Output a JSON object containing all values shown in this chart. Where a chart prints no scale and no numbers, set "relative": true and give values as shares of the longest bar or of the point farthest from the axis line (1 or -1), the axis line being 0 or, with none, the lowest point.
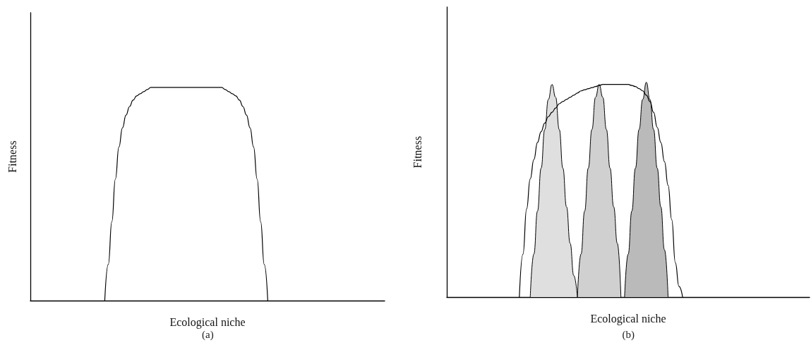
{
  "chart_data": [
    {
      "type": "line",
      "relative": true,
      "xlabel": "Ecological niche",
      "ylabel": "Fitness",
      "annotations": [
        "(a)"
      ],
      "tick_labels": false,
      "categories": [
        null,
        null,
        null,
        null,
        null,
        null,
        null,
        null,
        null,
        null,
        null,
        null,
        null,
        null,
        null,
        null,
        null,
        null,
        null,
        null,
        null,
        null,
        null,
        null,
        null,
        null,
        null,
        null,
        null,
        null,
        null,
        null,
        null,
        null,
        null,
        null,
        null,
        null,
        null,
        null,
        null,
        null,
        null,
        null,
        null,
        null,
        null,
        null,
        null,
        null,
        null,
        null,
        null,
        null,
        null,
        null,
        null,
        null,
        null,
        null,
        null,
        null,
        null,
        null,
        null,
        null,
        null,
        null,
        null,
        null,
        null,
        null,
        null,
        null,
        null,
        null,
        null,
        null,
        null,
        null,
        null,
        null,
        null,
        null,
        null,
        null,
        null,
        null,
        null,
        null,
        null,
        null,
        null,
        null,
        null,
        null,
        null,
        null,
        null,
        null,
        null
      ],
      "series": [
        {
          "color": "#000000",
          "values": [
            null,
            null,
            null,
            null,
            null,
            null,
            null,
            null,
            null,
            null,
            null,
            null,
            null,
            null,
            null,
            null,
            null,
            null,
            null,
            null,
            null,
            0,
            0.17,
            0.37,
            0.57,
            0.72,
            0.81,
            0.87,
            0.91,
            0.94,
            0.96,
            0.97,
            0.98,
            0.99,
            1,
            1,
            1,
            1,
            1,
            1,
            1,
            1,
            1,
            1,
            1,
            1,
            1,
            1,
            1,
            1,
            1,
            1,
            1,
            1,
            1,
            0.99,
            0.98,
            0.97,
            0.96,
            0.94,
            0.91,
            0.87,
            0.81,
            0.72,
            0.57,
            0.37,
            0.17,
            0,
            null,
            null,
            null,
            null,
            null,
            null,
            null,
            null,
            null,
            null,
            null,
            null,
            null,
            null,
            null,
            null,
            null,
            null,
            null,
            null,
            null,
            null,
            null,
            null,
            null,
            null,
            null,
            null,
            null,
            null,
            null,
            null,
            null
          ]
        }
      ]
    },
    {
      "type": "line",
      "relative": true,
      "xlabel": "Ecological niche",
      "ylabel": "Fitness",
      "annotations": [
        "(b)"
      ],
      "tick_labels": false,
      "categories": [
        null,
        null,
        null,
        null,
        null,
        null,
        null,
        null,
        null,
        null,
        null,
        null,
        null,
        null,
        null,
        null,
        null,
        null,
        null,
        null,
        null,
        null,
        null,
        null,
        null,
        null,
        null,
        null,
        null,
        null,
        null,
        null,
        null,
        null,
        null,
        null,
        null,
        null,
        null,
        null,
        null,
        null,
        null,
        null,
        null,
        null,
        null,
        null,
        null,
        null,
        null,
        null,
        null,
        null,
        null,
        null,
        null,
        null,
        null,
        null,
        null,
        null,
        null,
        null,
        null,
        null,
        null,
        null,
        null,
        null,
        null,
        null,
        null,
        null,
        null,
        null,
        null,
        null,
        null,
        null,
        null,
        null,
        null,
        null,
        null,
        null,
        null,
        null,
        null,
        null,
        null,
        null,
        null,
        null,
        null,
        null,
        null,
        null,
        null,
        null,
        null
      ],
      "series": [
        {
          "type": "area",
          "color": "#dfdfdf",
          "values": [
            null,
            null,
            null,
            null,
            null,
            null,
            null,
            null,
            null,
            null,
            null,
            null,
            null,
            null,
            null,
            null,
            null,
            null,
            null,
            null,
            null,
            null,
            null,
            0,
            0.2,
            0.4,
            0.6,
            0.78,
            0.92,
            0.99,
            0.93,
            0.78,
            0.6,
            0.42,
            0.25,
            0.1,
            0,
            null,
            null,
            null,
            null,
            null,
            null,
            null,
            null,
            null,
            null,
            null,
            null,
            null,
            null,
            null,
            null,
            null,
            null,
            null,
            null,
            null,
            null,
            null,
            null,
            null,
            null,
            null,
            null,
            null,
            null,
            null,
            null,
            null,
            null,
            null,
            null,
            null,
            null,
            null,
            null,
            null,
            null,
            null,
            null,
            null,
            null,
            null,
            null,
            null,
            null,
            null,
            null,
            null,
            null,
            null,
            null,
            null,
            null,
            null,
            null,
            null,
            null,
            null,
            null
          ]
        },
        {
          "type": "area",
          "color": "#d0d0d0",
          "values": [
            null,
            null,
            null,
            null,
            null,
            null,
            null,
            null,
            null,
            null,
            null,
            null,
            null,
            null,
            null,
            null,
            null,
            null,
            null,
            null,
            null,
            null,
            null,
            null,
            null,
            null,
            null,
            null,
            null,
            null,
            null,
            null,
            null,
            null,
            null,
            null,
            0,
            0.2,
            0.4,
            0.6,
            0.78,
            0.93,
            0.99,
            0.93,
            0.78,
            0.6,
            0.42,
            0.25,
            0,
            null,
            null,
            null,
            null,
            null,
            null,
            null,
            null,
            null,
            null,
            null,
            null,
            null,
            null,
            null,
            null,
            null,
            null,
            null,
            null,
            null,
            null,
            null,
            null,
            null,
            null,
            null,
            null,
            null,
            null,
            null,
            null,
            null,
            null,
            null,
            null,
            null,
            null,
            null,
            null,
            null,
            null,
            null,
            null,
            null,
            null,
            null,
            null,
            null,
            null,
            null,
            null
          ]
        },
        {
          "type": "area",
          "color": "#bababa",
          "values": [
            null,
            null,
            null,
            null,
            null,
            null,
            null,
            null,
            null,
            null,
            null,
            null,
            null,
            null,
            null,
            null,
            null,
            null,
            null,
            null,
            null,
            null,
            null,
            null,
            null,
            null,
            null,
            null,
            null,
            null,
            null,
            null,
            null,
            null,
            null,
            null,
            null,
            null,
            null,
            null,
            null,
            null,
            null,
            null,
            null,
            null,
            null,
            null,
            null,
            0,
            0.2,
            0.4,
            0.6,
            0.78,
            0.92,
            1,
            0.92,
            0.78,
            0.6,
            0.42,
            0.22,
            0,
            null,
            null,
            null,
            null,
            null,
            null,
            null,
            null,
            null,
            null,
            null,
            null,
            null,
            null,
            null,
            null,
            null,
            null,
            null,
            null,
            null,
            null,
            null,
            null,
            null,
            null,
            null,
            null,
            null,
            null,
            null,
            null,
            null,
            null,
            null,
            null,
            null,
            null,
            null
          ]
        },
        {
          "color": "#000000",
          "values": [
            null,
            null,
            null,
            null,
            null,
            null,
            null,
            null,
            null,
            null,
            null,
            null,
            null,
            null,
            null,
            null,
            null,
            null,
            null,
            null,
            0,
            0.2,
            0.41,
            0.55,
            0.64,
            0.72,
            0.77,
            0.81,
            0.84,
            0.86,
            0.88,
            0.9,
            0.91,
            0.92,
            0.93,
            0.94,
            0.95,
            0.96,
            0.965,
            0.97,
            0.975,
            0.98,
            0.985,
            0.99,
            0.99,
            0.99,
            0.99,
            0.99,
            0.99,
            0.99,
            0.99,
            0.985,
            0.98,
            0.97,
            0.96,
            0.94,
            0.91,
            0.86,
            0.79,
            0.72,
            0.63,
            0.52,
            0.36,
            0.16,
            0.05,
            0,
            null,
            null,
            null,
            null,
            null,
            null,
            null,
            null,
            null,
            null,
            null,
            null,
            null,
            null,
            null,
            null,
            null,
            null,
            null,
            null,
            null,
            null,
            null,
            null,
            null,
            null,
            null,
            null,
            null,
            null,
            null,
            null,
            null,
            null,
            null
          ]
        }
      ]
    }
  ]
}
